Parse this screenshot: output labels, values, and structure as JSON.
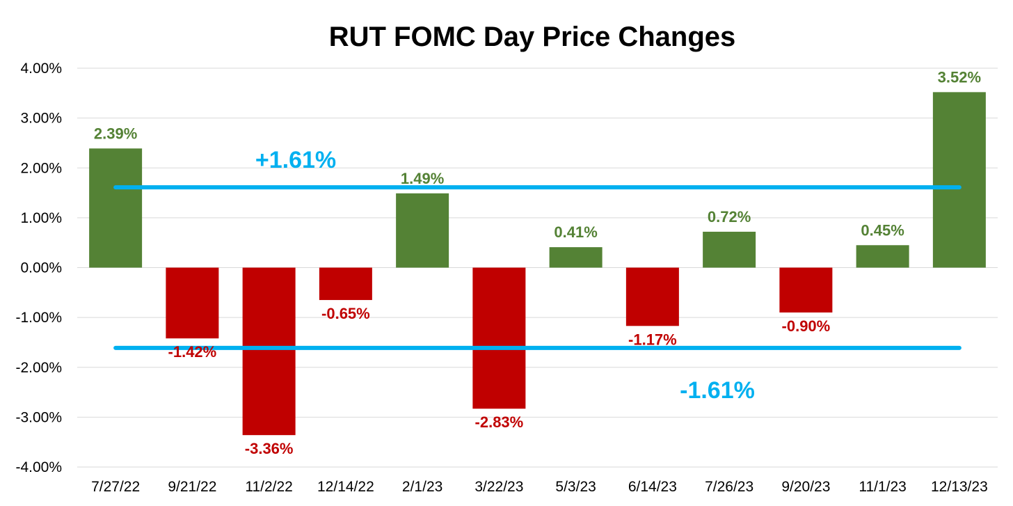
{
  "chart_data": {
    "type": "bar",
    "title": "RUT FOMC Day Price Changes",
    "xlabel": "",
    "ylabel": "",
    "ylim": [
      -4,
      4
    ],
    "yticks": [
      "4.00%",
      "3.00%",
      "2.00%",
      "1.00%",
      "0.00%",
      "-1.00%",
      "-2.00%",
      "-3.00%",
      "-4.00%"
    ],
    "ytick_values": [
      4,
      3,
      2,
      1,
      0,
      -1,
      -2,
      -3,
      -4
    ],
    "grid": true,
    "legend": "none",
    "categories": [
      "7/27/22",
      "9/21/22",
      "11/2/22",
      "12/14/22",
      "2/1/23",
      "3/22/23",
      "5/3/23",
      "6/14/23",
      "7/26/23",
      "9/20/23",
      "11/1/23",
      "12/13/23"
    ],
    "values": [
      2.39,
      -1.42,
      -3.36,
      -0.65,
      1.49,
      -2.83,
      0.41,
      -1.17,
      0.72,
      -0.9,
      0.45,
      3.52
    ],
    "data_labels": [
      "2.39%",
      "-1.42%",
      "-3.36%",
      "-0.65%",
      "1.49%",
      "-2.83%",
      "0.41%",
      "-1.17%",
      "0.72%",
      "-0.90%",
      "0.45%",
      "3.52%"
    ],
    "colors": {
      "positive": "#548235",
      "negative": "#c00000",
      "reference": "#00b0f0",
      "grid": "#d9d9d9"
    },
    "reference_lines": [
      {
        "value": 1.61,
        "label": "+1.61%"
      },
      {
        "value": -1.61,
        "label": "-1.61%"
      }
    ]
  }
}
